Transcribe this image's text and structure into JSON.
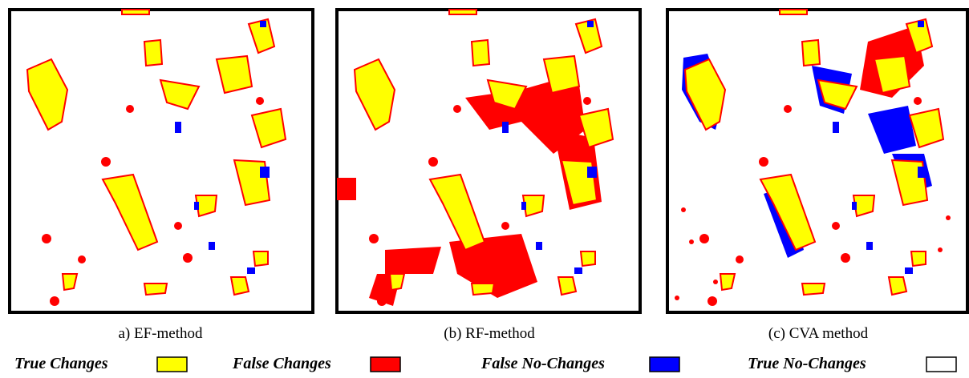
{
  "panels": [
    {
      "caption": "a) EF-method"
    },
    {
      "caption": "(b) RF-method"
    },
    {
      "caption": "(c) CVA method"
    }
  ],
  "legend": [
    {
      "label": "True Changes"
    },
    {
      "label": "False Changes"
    },
    {
      "label": "False No-Changes"
    },
    {
      "label": "True No-Changes"
    }
  ]
}
